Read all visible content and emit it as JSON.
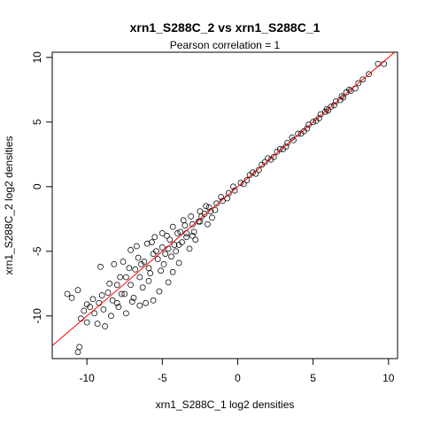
{
  "chart_data": {
    "type": "scatter",
    "title": "xrn1_S288C_2 vs xrn1_S288C_1",
    "subtitle": "Pearson correlation =  1",
    "xlabel": "xrn1_S288C_1 log2 densities",
    "ylabel": "xrn1_S288C_2 log2 densities",
    "xlim": [
      -12.3,
      10.6
    ],
    "ylim": [
      -13.3,
      10.4
    ],
    "xticks": [
      -10,
      -5,
      0,
      5,
      10
    ],
    "yticks": [
      -10,
      -5,
      0,
      5,
      10
    ],
    "xtick_labels": [
      "-10",
      "-5",
      "0",
      "5",
      "10"
    ],
    "ytick_labels": [
      "-10",
      "-5",
      "0",
      "5",
      "10"
    ],
    "grid": false,
    "legend": "none",
    "point_color": "#000000",
    "reference_line": {
      "slope": 1,
      "intercept": 0,
      "color": "#ff0000"
    },
    "points": [
      [
        9.7,
        9.5
      ],
      [
        9.3,
        9.5
      ],
      [
        8.7,
        8.7
      ],
      [
        8.3,
        8.3
      ],
      [
        8.0,
        8.0
      ],
      [
        7.8,
        7.6
      ],
      [
        7.5,
        7.4
      ],
      [
        7.2,
        7.3
      ],
      [
        7.0,
        6.9
      ],
      [
        6.8,
        6.7
      ],
      [
        6.5,
        6.6
      ],
      [
        6.2,
        6.2
      ],
      [
        6.0,
        5.9
      ],
      [
        5.8,
        5.8
      ],
      [
        5.5,
        5.6
      ],
      [
        5.2,
        5.1
      ],
      [
        5.0,
        5.0
      ],
      [
        4.7,
        4.8
      ],
      [
        4.4,
        4.3
      ],
      [
        4.0,
        4.1
      ],
      [
        3.7,
        3.6
      ],
      [
        3.3,
        3.4
      ],
      [
        3.0,
        2.9
      ],
      [
        2.6,
        2.7
      ],
      [
        2.2,
        2.1
      ],
      [
        1.8,
        1.9
      ],
      [
        1.4,
        1.3
      ],
      [
        1.0,
        1.1
      ],
      [
        0.6,
        0.5
      ],
      [
        0.2,
        0.3
      ],
      [
        -0.2,
        -0.3
      ],
      [
        -0.6,
        -0.5
      ],
      [
        -1.0,
        -1.1
      ],
      [
        -1.4,
        -1.3
      ],
      [
        -1.8,
        -1.9
      ],
      [
        -2.2,
        -2.1
      ],
      [
        -2.6,
        -2.7
      ],
      [
        -3.0,
        -2.9
      ],
      [
        -3.4,
        -3.6
      ],
      [
        -3.8,
        -3.5
      ],
      [
        -4.0,
        -3.6
      ],
      [
        -4.2,
        -4.5
      ],
      [
        -4.5,
        -4.1
      ],
      [
        -4.8,
        -5.2
      ],
      [
        -5.0,
        -4.7
      ],
      [
        -5.3,
        -5.6
      ],
      [
        -5.6,
        -5.2
      ],
      [
        -5.9,
        -6.3
      ],
      [
        -6.2,
        -5.8
      ],
      [
        -6.5,
        -7.0
      ],
      [
        -6.8,
        -6.4
      ],
      [
        -7.1,
        -7.6
      ],
      [
        -7.4,
        -7.0
      ],
      [
        -7.7,
        -8.3
      ],
      [
        -8.0,
        -7.6
      ],
      [
        -8.3,
        -8.8
      ],
      [
        -8.6,
        -8.2
      ],
      [
        -8.9,
        -9.5
      ],
      [
        -9.2,
        -9.0
      ],
      [
        -9.5,
        -9.8
      ],
      [
        -9.6,
        -8.7
      ],
      [
        -9.8,
        -9.3
      ],
      [
        -10.0,
        -9.1
      ],
      [
        -10.2,
        -9.6
      ],
      [
        -10.4,
        -10.2
      ],
      [
        -10.6,
        -12.8
      ],
      [
        -10.5,
        -12.4
      ],
      [
        -11.0,
        -8.6
      ],
      [
        -11.3,
        -8.3
      ],
      [
        -10.6,
        -8.0
      ],
      [
        -10.0,
        -10.5
      ],
      [
        -9.3,
        -10.6
      ],
      [
        -8.8,
        -10.8
      ],
      [
        -9.1,
        -6.2
      ],
      [
        -8.2,
        -6.0
      ],
      [
        -7.6,
        -5.8
      ],
      [
        -7.1,
        -4.9
      ],
      [
        -6.7,
        -4.6
      ],
      [
        -6.0,
        -4.4
      ],
      [
        -5.5,
        -3.9
      ],
      [
        -5.0,
        -3.6
      ],
      [
        -4.3,
        -3.1
      ],
      [
        -3.6,
        -2.6
      ],
      [
        -6.5,
        -9.2
      ],
      [
        -6.1,
        -9.0
      ],
      [
        -5.6,
        -8.8
      ],
      [
        -5.2,
        -8.1
      ],
      [
        -4.6,
        -7.4
      ],
      [
        -4.3,
        -6.6
      ],
      [
        -3.9,
        -5.9
      ],
      [
        -3.2,
        -4.8
      ],
      [
        -2.8,
        -4.1
      ],
      [
        -7.4,
        -9.8
      ],
      [
        -7.9,
        -9.3
      ],
      [
        -8.4,
        -10.0
      ],
      [
        -6.9,
        -8.6
      ],
      [
        -7.2,
        -6.3
      ],
      [
        -6.3,
        -7.8
      ],
      [
        -5.8,
        -6.7
      ],
      [
        -5.4,
        -5.0
      ],
      [
        -4.9,
        -6.0
      ],
      [
        -4.4,
        -5.4
      ],
      [
        -3.9,
        -4.5
      ],
      [
        -3.4,
        -3.9
      ],
      [
        -2.9,
        -3.5
      ],
      [
        -2.4,
        -2.3
      ],
      [
        -1.9,
        -1.6
      ],
      [
        -1.5,
        -1.8
      ],
      [
        -1.1,
        -0.8
      ],
      [
        -0.7,
        -0.9
      ],
      [
        -0.3,
        0.0
      ],
      [
        0.4,
        0.2
      ],
      [
        0.8,
        0.9
      ],
      [
        1.2,
        1.0
      ],
      [
        1.6,
        1.7
      ],
      [
        2.0,
        2.2
      ],
      [
        2.4,
        2.3
      ],
      [
        2.8,
        2.9
      ],
      [
        3.2,
        3.1
      ],
      [
        3.6,
        3.8
      ],
      [
        4.2,
        4.1
      ],
      [
        4.6,
        4.5
      ],
      [
        5.4,
        5.3
      ],
      [
        5.9,
        6.0
      ],
      [
        6.4,
        6.3
      ],
      [
        6.9,
        7.0
      ],
      [
        7.4,
        7.5
      ],
      [
        -2.0,
        -2.9
      ],
      [
        -2.5,
        -1.9
      ],
      [
        -1.7,
        -2.4
      ],
      [
        -3.1,
        -2.3
      ],
      [
        -3.7,
        -4.3
      ],
      [
        -4.7,
        -3.8
      ],
      [
        -5.7,
        -4.3
      ],
      [
        -6.6,
        -5.5
      ],
      [
        -7.0,
        -8.9
      ],
      [
        -7.8,
        -7.0
      ],
      [
        -8.5,
        -7.5
      ],
      [
        -9.0,
        -8.4
      ],
      [
        -8.0,
        -9.0
      ],
      [
        -7.5,
        -8.3
      ],
      [
        -6.4,
        -6.0
      ],
      [
        -5.9,
        -7.3
      ],
      [
        -5.1,
        -6.5
      ],
      [
        -4.6,
        -4.8
      ],
      [
        -4.1,
        -5.0
      ],
      [
        -3.5,
        -3.0
      ],
      [
        -3.0,
        -3.8
      ],
      [
        -2.5,
        -2.7
      ],
      [
        -2.1,
        -1.5
      ]
    ]
  }
}
